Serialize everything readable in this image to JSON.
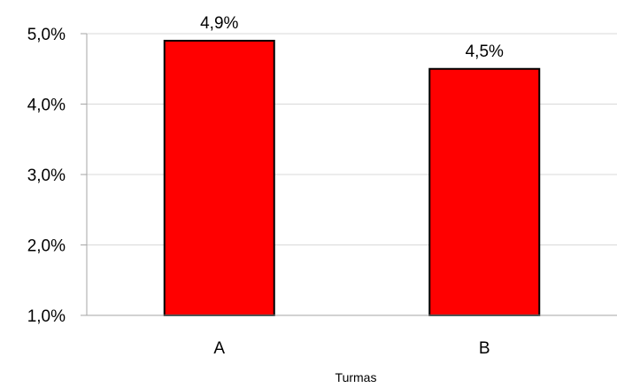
{
  "chart_data": {
    "type": "bar",
    "title": "",
    "xlabel": "Turmas",
    "ylabel": "",
    "categories": [
      "A",
      "B"
    ],
    "values": [
      4.9,
      4.5
    ],
    "data_labels": [
      "4,9%",
      "4,5%"
    ],
    "ylim": [
      1.0,
      5.0
    ],
    "y_ticks": [
      1.0,
      2.0,
      3.0,
      4.0,
      5.0
    ],
    "y_tick_labels": [
      "1,0%",
      "2,0%",
      "3,0%",
      "4,0%",
      "5,0%"
    ],
    "grid": true,
    "legend": "none",
    "colors": {
      "bar": "#ff0000",
      "bar_border": "#000000",
      "title": "#ff0000",
      "gridline": "#d9d9d9",
      "axis": "#a6a6a6"
    }
  }
}
